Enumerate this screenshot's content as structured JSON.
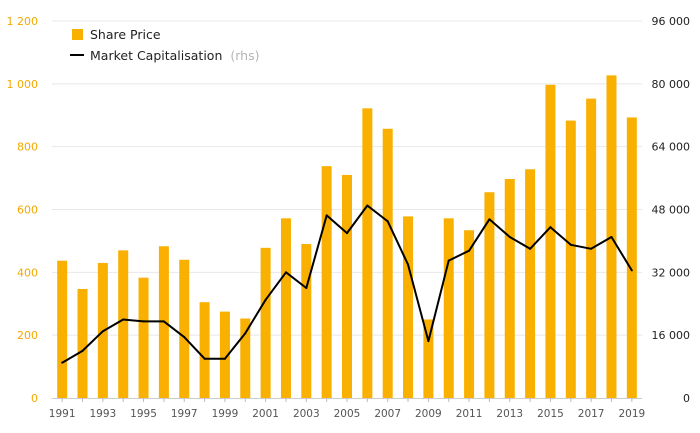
{
  "chart_data": {
    "type": "bar+line",
    "x": [
      1991,
      1992,
      1993,
      1994,
      1995,
      1996,
      1997,
      1998,
      1999,
      2000,
      2001,
      2002,
      2003,
      2004,
      2005,
      2006,
      2007,
      2008,
      2009,
      2010,
      2011,
      2012,
      2013,
      2014,
      2015,
      2016,
      2017,
      2018,
      2019
    ],
    "x_tick_labels": [
      "1991",
      "1993",
      "1995",
      "1997",
      "1999",
      "2001",
      "2003",
      "2005",
      "2007",
      "2009",
      "2011",
      "2013",
      "2015",
      "2017",
      "2019"
    ],
    "series": [
      {
        "name": "Share Price",
        "type": "bar",
        "axis": "left",
        "color": "#f9b000",
        "values": [
          437,
          347,
          430,
          470,
          383,
          483,
          440,
          305,
          275,
          253,
          478,
          572,
          490,
          738,
          710,
          922,
          857,
          578,
          250,
          572,
          534,
          655,
          697,
          728,
          997,
          883,
          953,
          1027,
          893
        ]
      },
      {
        "name": "Market Capitalisation",
        "name_suffix": "(rhs)",
        "type": "line",
        "axis": "right",
        "color": "#000000",
        "values": [
          9000,
          12000,
          17000,
          20000,
          19500,
          19500,
          15500,
          10000,
          10000,
          16500,
          25000,
          32000,
          28000,
          46500,
          42000,
          49000,
          45000,
          34000,
          14500,
          35000,
          37500,
          45500,
          41000,
          38000,
          43500,
          39000,
          38000,
          41000,
          32500
        ]
      }
    ],
    "left_axis": {
      "min": 0,
      "max": 1200,
      "ticks": [
        "0",
        "200",
        "400",
        "600",
        "800",
        "1 000",
        "1 200"
      ],
      "color": "#f2a900"
    },
    "right_axis": {
      "min": 0,
      "max": 96000,
      "ticks": [
        "0",
        "16 000",
        "32 000",
        "48 000",
        "64 000",
        "80 000",
        "96 000"
      ],
      "color": "#222222"
    },
    "grid": true,
    "legend_position": "top-left"
  }
}
